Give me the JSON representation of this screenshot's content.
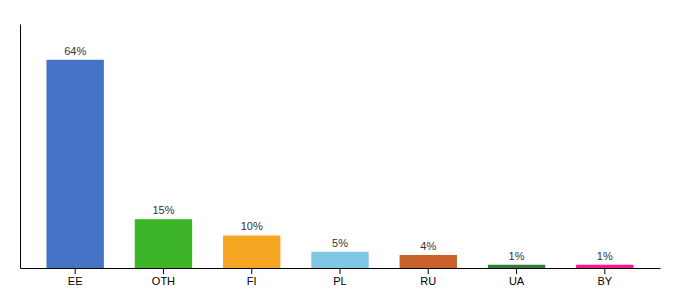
{
  "chart_data": {
    "type": "bar",
    "categories": [
      "EE",
      "OTH",
      "FI",
      "PL",
      "RU",
      "UA",
      "BY"
    ],
    "values": [
      64,
      15,
      10,
      5,
      4,
      1,
      1
    ],
    "value_labels": [
      "64%",
      "15%",
      "10%",
      "5%",
      "4%",
      "1%",
      "1%"
    ],
    "colors": [
      "#4472C4",
      "#3CB528",
      "#F5A623",
      "#7EC8E3",
      "#C8622A",
      "#2E7D32",
      "#FF1493"
    ],
    "ylim": [
      0,
      75
    ],
    "grid": false,
    "data_labels": true,
    "tick_labels": "x"
  }
}
